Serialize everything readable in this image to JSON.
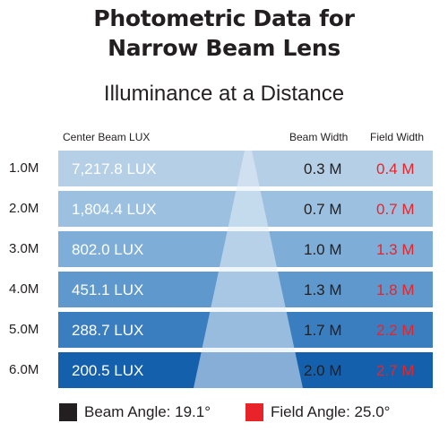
{
  "title": {
    "line1": "Photometric Data for",
    "line2": "Narrow Beam Lens"
  },
  "subtitle": "Illuminance at a Distance",
  "columns": {
    "lux": "Center Beam LUX",
    "beam": "Beam Width",
    "field": "Field Width"
  },
  "rows": [
    {
      "distance": "1.0M",
      "lux": "7,217.8 LUX",
      "beam": "0.3 M",
      "field": "0.4 M",
      "color": "#b5cfe6"
    },
    {
      "distance": "2.0M",
      "lux": "1,804.4 LUX",
      "beam": "0.7 M",
      "field": "0.7 M",
      "color": "#9cc0e0"
    },
    {
      "distance": "3.0M",
      "lux": "802.0 LUX",
      "beam": "1.0 M",
      "field": "1.3 M",
      "color": "#7eaed7"
    },
    {
      "distance": "4.0M",
      "lux": "451.1 LUX",
      "beam": "1.3 M",
      "field": "1.8 M",
      "color": "#5e98cc"
    },
    {
      "distance": "5.0M",
      "lux": "288.7 LUX",
      "beam": "1.7 M",
      "field": "2.2 M",
      "color": "#3b7ebf"
    },
    {
      "distance": "6.0M",
      "lux": "200.5 LUX",
      "beam": "2.0 M",
      "field": "2.7 M",
      "color": "#1460ad"
    }
  ],
  "legend": {
    "beam": {
      "label": "Beam Angle: 19.1°",
      "color": "#231f20"
    },
    "field": {
      "label": "Field Angle: 25.0°",
      "color": "#e8242a"
    }
  },
  "beam_cone_color": "#e6eef7"
}
